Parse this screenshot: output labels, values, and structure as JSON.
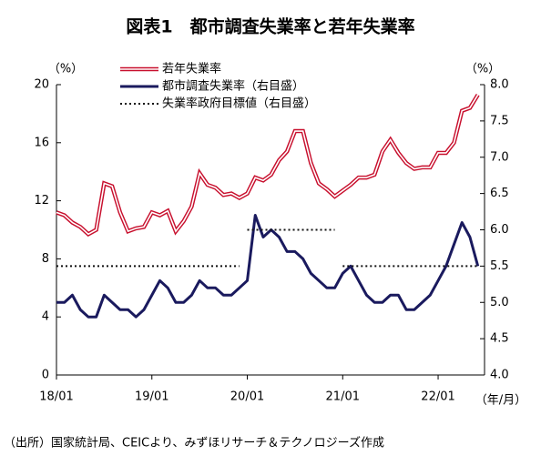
{
  "chart_data": {
    "type": "line",
    "title": "図表1　都市調査失業率と若年失業率",
    "y_label": "（%）",
    "y2_label": "（%）",
    "x_label": "（年/月）",
    "note": "（出所）国家統計局、CEICより、みずほリサーチ＆テクノロジーズ作成",
    "categories": [
      "18/01",
      null,
      null,
      null,
      null,
      null,
      null,
      null,
      null,
      null,
      null,
      null,
      "19/01",
      null,
      null,
      null,
      null,
      null,
      null,
      null,
      null,
      null,
      null,
      null,
      "20/01",
      null,
      null,
      null,
      null,
      null,
      null,
      null,
      null,
      null,
      null,
      null,
      "21/01",
      null,
      null,
      null,
      null,
      null,
      null,
      null,
      null,
      null,
      null,
      null,
      "22/01",
      null,
      null,
      null,
      null,
      null
    ],
    "series": [
      {
        "name": "若年失業率",
        "color": "#c8102e",
        "style": "double",
        "values": [
          11.2,
          11.0,
          10.5,
          10.2,
          9.7,
          10.0,
          13.2,
          13.0,
          11.2,
          9.9,
          10.1,
          10.2,
          11.2,
          11.0,
          11.3,
          9.9,
          10.6,
          11.6,
          13.9,
          13.1,
          12.9,
          12.4,
          12.5,
          12.2,
          12.5,
          13.6,
          13.4,
          13.8,
          14.8,
          15.4,
          16.8,
          16.8,
          14.6,
          13.2,
          12.8,
          12.3,
          12.7,
          13.1,
          13.6,
          13.6,
          13.8,
          15.4,
          16.2,
          15.3,
          14.6,
          14.2,
          14.3,
          14.3,
          15.3,
          15.3,
          16.0,
          18.2,
          18.4,
          19.3
        ]
      },
      {
        "name": "都市調査失業率（右目盛）",
        "color": "#1a1a5e",
        "style": "solid",
        "axis": "y2",
        "values": [
          5.0,
          5.0,
          5.1,
          4.9,
          4.8,
          4.8,
          5.1,
          5.0,
          4.9,
          4.9,
          4.8,
          4.9,
          5.1,
          5.3,
          5.2,
          5.0,
          5.0,
          5.1,
          5.3,
          5.2,
          5.2,
          5.1,
          5.1,
          5.2,
          5.3,
          6.2,
          5.9,
          6.0,
          5.9,
          5.7,
          5.7,
          5.6,
          5.4,
          5.3,
          5.2,
          5.2,
          5.4,
          5.5,
          5.3,
          5.1,
          5.0,
          5.0,
          5.1,
          5.1,
          4.9,
          4.9,
          5.0,
          5.1,
          5.3,
          5.5,
          5.8,
          6.1,
          5.9,
          5.5
        ]
      },
      {
        "name": "失業率政府目標値（右目盛）",
        "color": "#111111",
        "style": "dotted",
        "axis": "y2",
        "values": [
          5.5,
          5.5,
          5.5,
          5.5,
          5.5,
          5.5,
          5.5,
          5.5,
          5.5,
          5.5,
          5.5,
          5.5,
          5.5,
          5.5,
          5.5,
          5.5,
          5.5,
          5.5,
          5.5,
          5.5,
          5.5,
          5.5,
          5.5,
          5.5,
          6.0,
          6.0,
          6.0,
          6.0,
          6.0,
          6.0,
          6.0,
          6.0,
          6.0,
          6.0,
          6.0,
          6.0,
          5.5,
          5.5,
          5.5,
          5.5,
          5.5,
          5.5,
          5.5,
          5.5,
          5.5,
          5.5,
          5.5,
          5.5,
          5.5,
          5.5,
          5.5,
          5.5,
          5.5,
          5.5
        ]
      }
    ],
    "ylim": [
      0,
      20
    ],
    "yticks": [
      0,
      4,
      8,
      12,
      16,
      20
    ],
    "y2lim": [
      4,
      8
    ],
    "y2ticks": [
      {
        "value": 4,
        "label": "4.0"
      },
      4.5,
      {
        "value": 5,
        "label": "5.0"
      },
      5.5,
      {
        "value": 6,
        "label": "6.0"
      },
      6.5,
      {
        "value": 7,
        "label": "7.0"
      },
      7.5,
      {
        "value": 8,
        "label": "8.0"
      }
    ]
  }
}
